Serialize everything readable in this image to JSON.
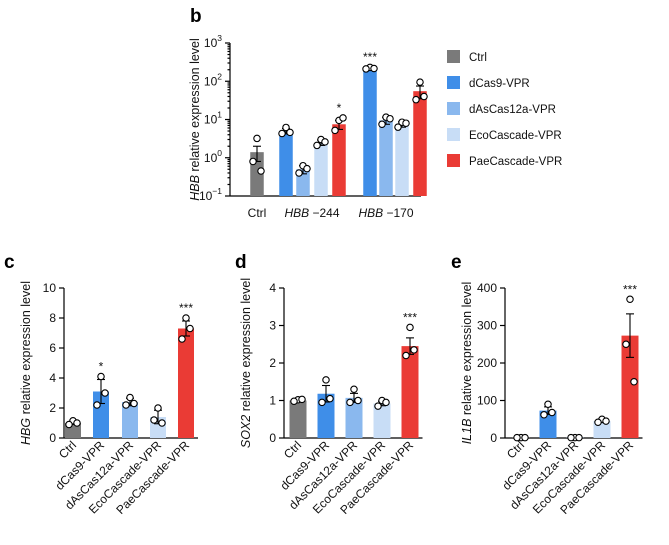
{
  "colors": {
    "Ctrl": "#7a7a7a",
    "dCas9-VPR": "#3f8ee8",
    "dAsCas12a-VPR": "#8ab8ee",
    "EcoCascade-VPR": "#c8ddf6",
    "PaeCascade-VPR": "#ea3b35"
  },
  "legend": [
    "Ctrl",
    "dCas9-VPR",
    "dAsCas12a-VPR",
    "EcoCascade-VPR",
    "PaeCascade-VPR"
  ],
  "chart_data": [
    {
      "panel": "b",
      "type": "bar",
      "log_scale": true,
      "ylabel_italic": "HBB",
      "ylabel_rest": " relative expression level",
      "ylim": [
        0.1,
        1000
      ],
      "yticks": [
        {
          "base": "10",
          "exp": "3",
          "v": 1000
        },
        {
          "base": "10",
          "exp": "2",
          "v": 100
        },
        {
          "base": "10",
          "exp": "1",
          "v": 10
        },
        {
          "base": "10",
          "exp": "0",
          "v": 1
        },
        {
          "base": "10",
          "exp": "−1",
          "v": 0.1
        }
      ],
      "groups": [
        {
          "label": "Ctrl",
          "italic": "",
          "rest": "Ctrl"
        },
        {
          "label": "HBB −244",
          "italic": "HBB",
          "rest": " −244"
        },
        {
          "label": "HBB −170",
          "italic": "HBB",
          "rest": " −170"
        }
      ],
      "bars": [
        {
          "group": 0,
          "series": "Ctrl",
          "value": 1.4,
          "err": 0.6,
          "points": [
            3.2,
            0.8,
            0.45
          ],
          "sig": ""
        },
        {
          "group": 1,
          "series": "dCas9-VPR",
          "value": 5.0,
          "err": 0.8,
          "points": [
            6.2,
            4.3,
            4.6
          ],
          "sig": ""
        },
        {
          "group": 1,
          "series": "dAsCas12a-VPR",
          "value": 0.5,
          "err": 0.12,
          "points": [
            0.62,
            0.4,
            0.52
          ],
          "sig": ""
        },
        {
          "group": 1,
          "series": "EcoCascade-VPR",
          "value": 2.5,
          "err": 0.4,
          "points": [
            3.0,
            2.1,
            2.6
          ],
          "sig": ""
        },
        {
          "group": 1,
          "series": "PaeCascade-VPR",
          "value": 7.5,
          "err": 2.0,
          "points": [
            9.5,
            5.2,
            11.0
          ],
          "sig": "*"
        },
        {
          "group": 2,
          "series": "dCas9-VPR",
          "value": 220,
          "err": 15,
          "points": [
            230,
            210,
            215
          ],
          "sig": "***"
        },
        {
          "group": 2,
          "series": "dAsCas12a-VPR",
          "value": 9.5,
          "err": 2.0,
          "points": [
            11.5,
            7.5,
            10.5
          ],
          "sig": ""
        },
        {
          "group": 2,
          "series": "EcoCascade-VPR",
          "value": 7.5,
          "err": 1.2,
          "points": [
            8.5,
            6.3,
            8.0
          ],
          "sig": ""
        },
        {
          "group": 2,
          "series": "PaeCascade-VPR",
          "value": 55,
          "err": 20,
          "points": [
            95,
            33,
            40
          ],
          "sig": ""
        }
      ]
    },
    {
      "panel": "c",
      "type": "bar",
      "ylabel_italic": "HBG",
      "ylabel_rest": " relative expression level",
      "ylim": [
        0,
        10
      ],
      "yticks": [
        0,
        2,
        4,
        6,
        8,
        10
      ],
      "categories": [
        "Ctrl",
        "dCas9-VPR",
        "dAsCas12a-VPR",
        "EcoCascade-VPR",
        "PaeCascade-VPR"
      ],
      "values": [
        1.0,
        3.1,
        2.4,
        1.4,
        7.3
      ],
      "errors": [
        0.1,
        0.8,
        0.25,
        0.45,
        0.5
      ],
      "points": [
        [
          1.15,
          0.9,
          1.0
        ],
        [
          4.1,
          2.2,
          3.0
        ],
        [
          2.7,
          2.2,
          2.3
        ],
        [
          2.0,
          1.2,
          1.0
        ],
        [
          8.0,
          6.6,
          7.3
        ]
      ],
      "sig": [
        "",
        "*",
        "",
        "",
        "***"
      ]
    },
    {
      "panel": "d",
      "type": "bar",
      "ylabel_italic": "SOX2",
      "ylabel_rest": " relative expression level",
      "ylim": [
        0,
        4
      ],
      "yticks": [
        0,
        1,
        2,
        3,
        4
      ],
      "categories": [
        "Ctrl",
        "dCas9-VPR",
        "dAsCas12a-VPR",
        "EcoCascade-VPR",
        "PaeCascade-VPR"
      ],
      "values": [
        1.0,
        1.18,
        1.07,
        0.92,
        2.45
      ],
      "errors": [
        0.03,
        0.22,
        0.12,
        0.06,
        0.22
      ],
      "points": [
        [
          1.02,
          0.98,
          1.03
        ],
        [
          1.55,
          0.95,
          1.05
        ],
        [
          1.3,
          0.95,
          1.0
        ],
        [
          1.0,
          0.85,
          0.95
        ],
        [
          2.95,
          2.2,
          2.35
        ]
      ],
      "sig": [
        "",
        "",
        "",
        "",
        "***"
      ]
    },
    {
      "panel": "e",
      "type": "bar",
      "ylabel_italic": "IL1B",
      "ylabel_rest": " relative expression level",
      "ylim": [
        0,
        400
      ],
      "yticks": [
        0,
        100,
        200,
        300,
        400
      ],
      "categories": [
        "Ctrl",
        "dCas9-VPR",
        "dAsCas12a-VPR",
        "EcoCascade-VPR",
        "PaeCascade-VPR"
      ],
      "values": [
        1,
        73,
        1,
        45,
        273
      ],
      "errors": [
        1,
        10,
        1,
        4,
        58
      ],
      "points": [
        [
          1,
          1,
          1
        ],
        [
          90,
          62,
          68
        ],
        [
          1,
          1,
          1
        ],
        [
          50,
          42,
          45
        ],
        [
          370,
          250,
          150
        ]
      ],
      "sig": [
        "",
        "",
        "",
        "",
        "***"
      ]
    }
  ]
}
